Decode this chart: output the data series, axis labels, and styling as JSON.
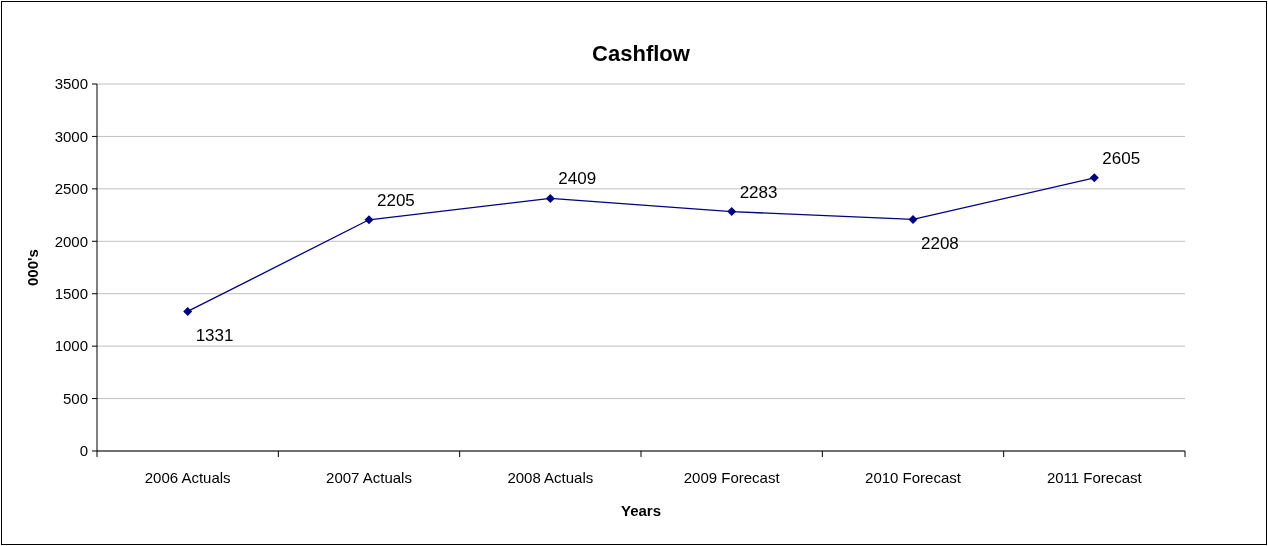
{
  "chart_data": {
    "type": "line",
    "title": "Cashflow",
    "xlabel": "Years",
    "ylabel": "000's",
    "categories": [
      "2006 Actuals",
      "2007 Actuals",
      "2008 Actuals",
      "2009 Forecast",
      "2010 Forecast",
      "2011 Forecast"
    ],
    "series": [
      {
        "color": "#000080",
        "values": [
          1331,
          2205,
          2409,
          2283,
          2208,
          2605
        ]
      }
    ],
    "ylim": [
      0,
      3500
    ],
    "yticks": [
      0,
      500,
      1000,
      1500,
      2000,
      2500,
      3000,
      3500
    ],
    "grid": "y",
    "marker": "diamond",
    "line_style": "solid",
    "data_labels": true
  }
}
